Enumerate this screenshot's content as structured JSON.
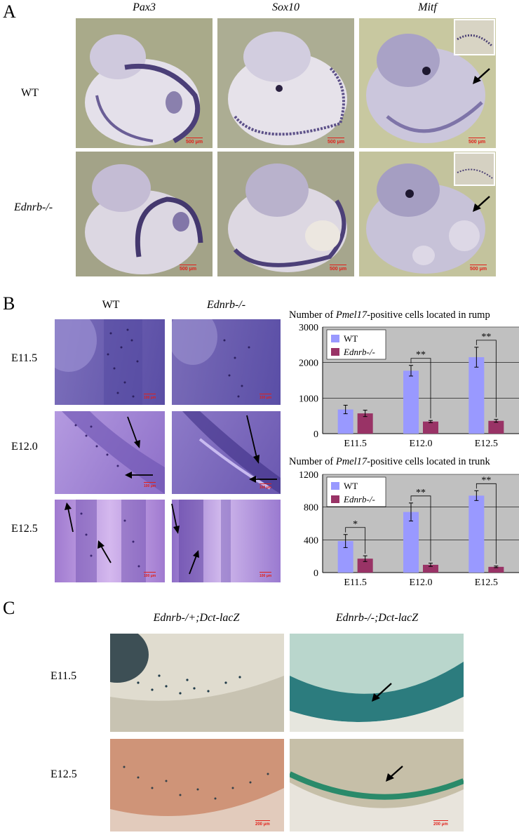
{
  "panel_a": {
    "letter": "A",
    "columns": [
      "Pax3",
      "Sox10",
      "Mitf"
    ],
    "rows": [
      "WT",
      "Ednrb-/-"
    ],
    "scale_bar": "500 μm"
  },
  "panel_b": {
    "letter": "B",
    "columns": [
      "WT",
      "Ednrb-/-"
    ],
    "rows": [
      "E11.5",
      "E12.0",
      "E12.5"
    ],
    "scale_bar": "100 μm"
  },
  "panel_c": {
    "letter": "C",
    "columns": [
      "Ednrb-/+;Dct-lacZ",
      "Ednrb-/-;Dct-lacZ"
    ],
    "rows": [
      "E11.5",
      "E12.5"
    ],
    "scale_bar": "200 μm"
  },
  "chart_data": [
    {
      "type": "bar",
      "title_prefix": "Number of ",
      "title_gene": "Pmel17",
      "title_suffix": "-positive cells located in rump",
      "categories": [
        "E11.5",
        "E12.0",
        "E12.5"
      ],
      "series": [
        {
          "name": "WT",
          "values": [
            680,
            1770,
            2150
          ],
          "errors": [
            120,
            150,
            280
          ],
          "color": "#9999ff"
        },
        {
          "name": "Ednrb-/-",
          "values": [
            570,
            340,
            360
          ],
          "errors": [
            90,
            30,
            40
          ],
          "color": "#993366"
        }
      ],
      "ylim": [
        0,
        3000
      ],
      "yticks": [
        0,
        1000,
        2000,
        3000
      ],
      "significance": [
        "",
        "**",
        "**"
      ],
      "grid": true,
      "legend": "top-left"
    },
    {
      "type": "bar",
      "title_prefix": "Number of ",
      "title_gene": "Pmel17",
      "title_suffix": "-positive cells located in trunk",
      "categories": [
        "E11.5",
        "E12.0",
        "E12.5"
      ],
      "series": [
        {
          "name": "WT",
          "values": [
            385,
            740,
            940
          ],
          "errors": [
            80,
            110,
            60
          ],
          "color": "#9999ff"
        },
        {
          "name": "Ednrb-/-",
          "values": [
            170,
            95,
            70
          ],
          "errors": [
            35,
            20,
            10
          ],
          "color": "#993366"
        }
      ],
      "ylim": [
        0,
        1200
      ],
      "yticks": [
        0,
        400,
        800,
        1200
      ],
      "significance": [
        "*",
        "**",
        "**"
      ],
      "grid": true,
      "legend": "top-left"
    }
  ]
}
